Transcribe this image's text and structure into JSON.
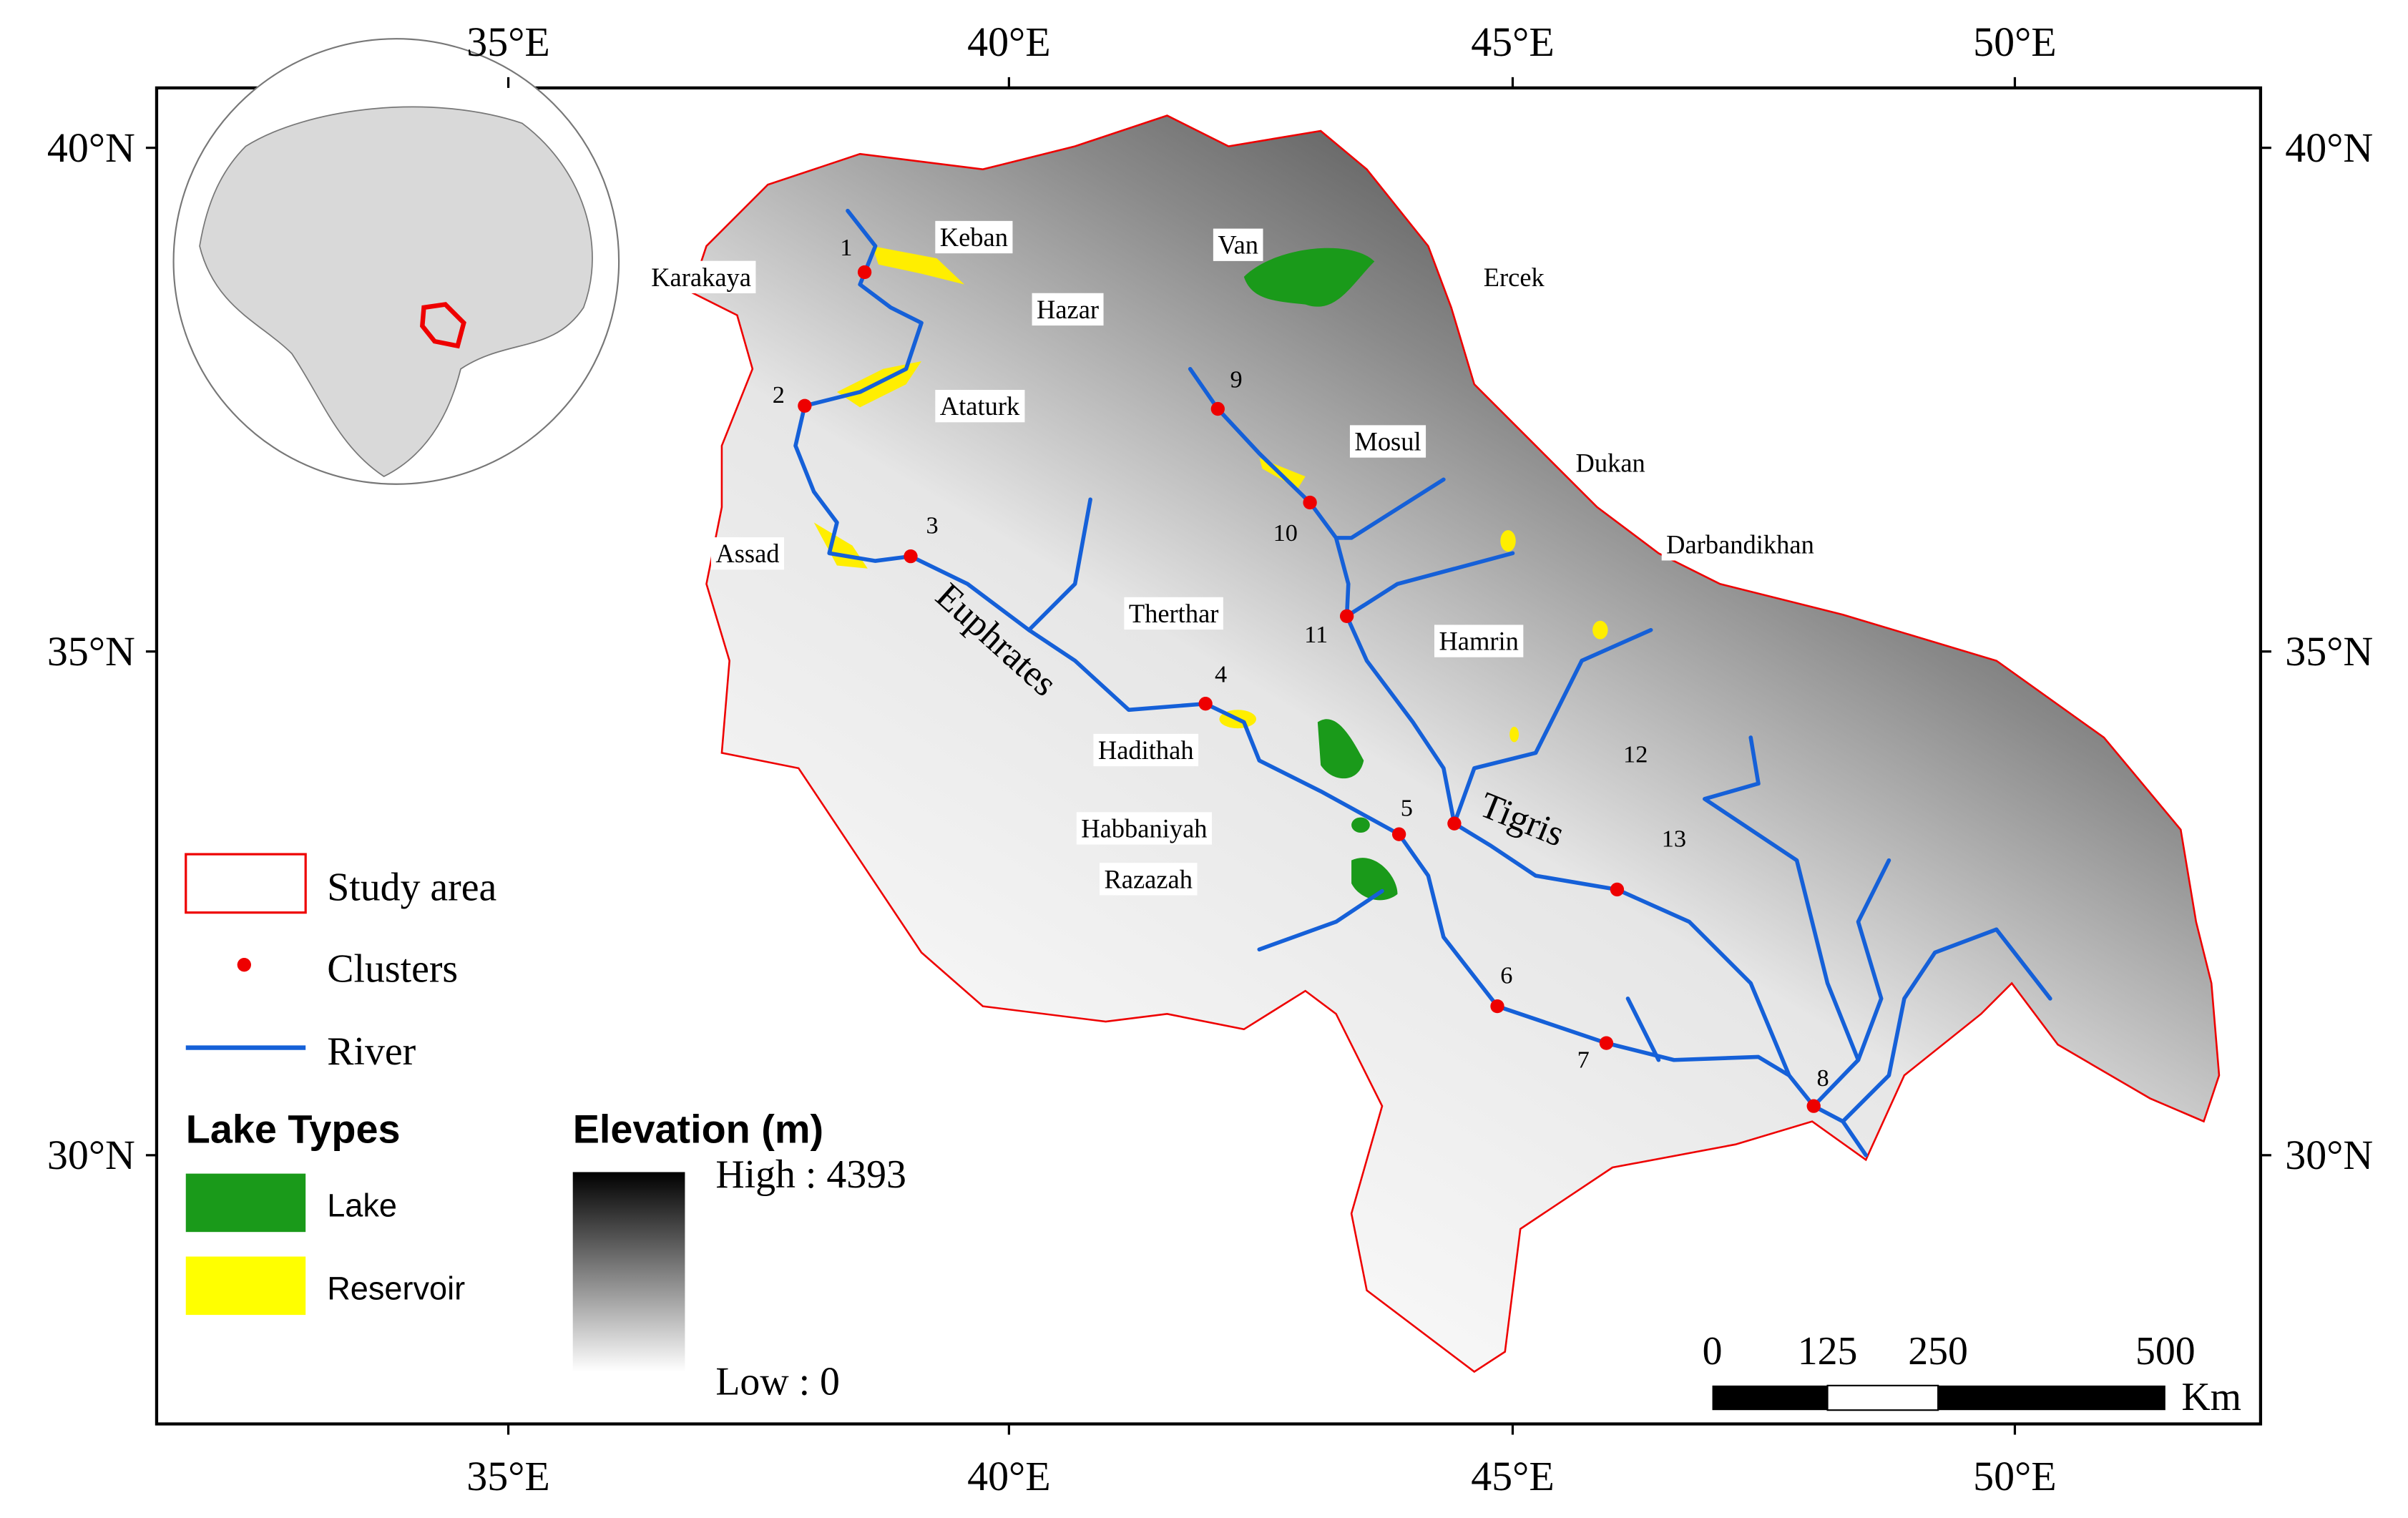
{
  "graticule": {
    "top": [
      "35°E",
      "40°E",
      "45°E",
      "50°E"
    ],
    "bottom": [
      "35°E",
      "40°E",
      "45°E",
      "50°E"
    ],
    "left": [
      "40°N",
      "35°N",
      "30°N"
    ],
    "right": [
      "40°N",
      "35°N",
      "30°N"
    ]
  },
  "places": [
    "Keban",
    "Karakaya",
    "Hazar",
    "Ataturk",
    "Van",
    "Ercek",
    "Mosul",
    "Dukan",
    "Darbandikhan",
    "Assad",
    "Therthar",
    "Hamrin",
    "Hadithah",
    "Habbaniyah",
    "Razazah"
  ],
  "rivers": [
    "Euphrates",
    "Tigris"
  ],
  "clusters": [
    "1",
    "2",
    "3",
    "4",
    "5",
    "6",
    "7",
    "8",
    "9",
    "10",
    "11",
    "12",
    "13"
  ],
  "legend": {
    "items": [
      "Study area",
      "Clusters",
      "River"
    ]
  },
  "lake_types": {
    "title": "Lake Types",
    "items": [
      "Lake",
      "Reservoir"
    ]
  },
  "elevation": {
    "title": "Elevation (m)",
    "high": "High : 4393",
    "low": "Low : 0"
  },
  "scale_bar": {
    "labels": [
      "0",
      "125",
      "250",
      "500"
    ],
    "unit": "Km"
  }
}
